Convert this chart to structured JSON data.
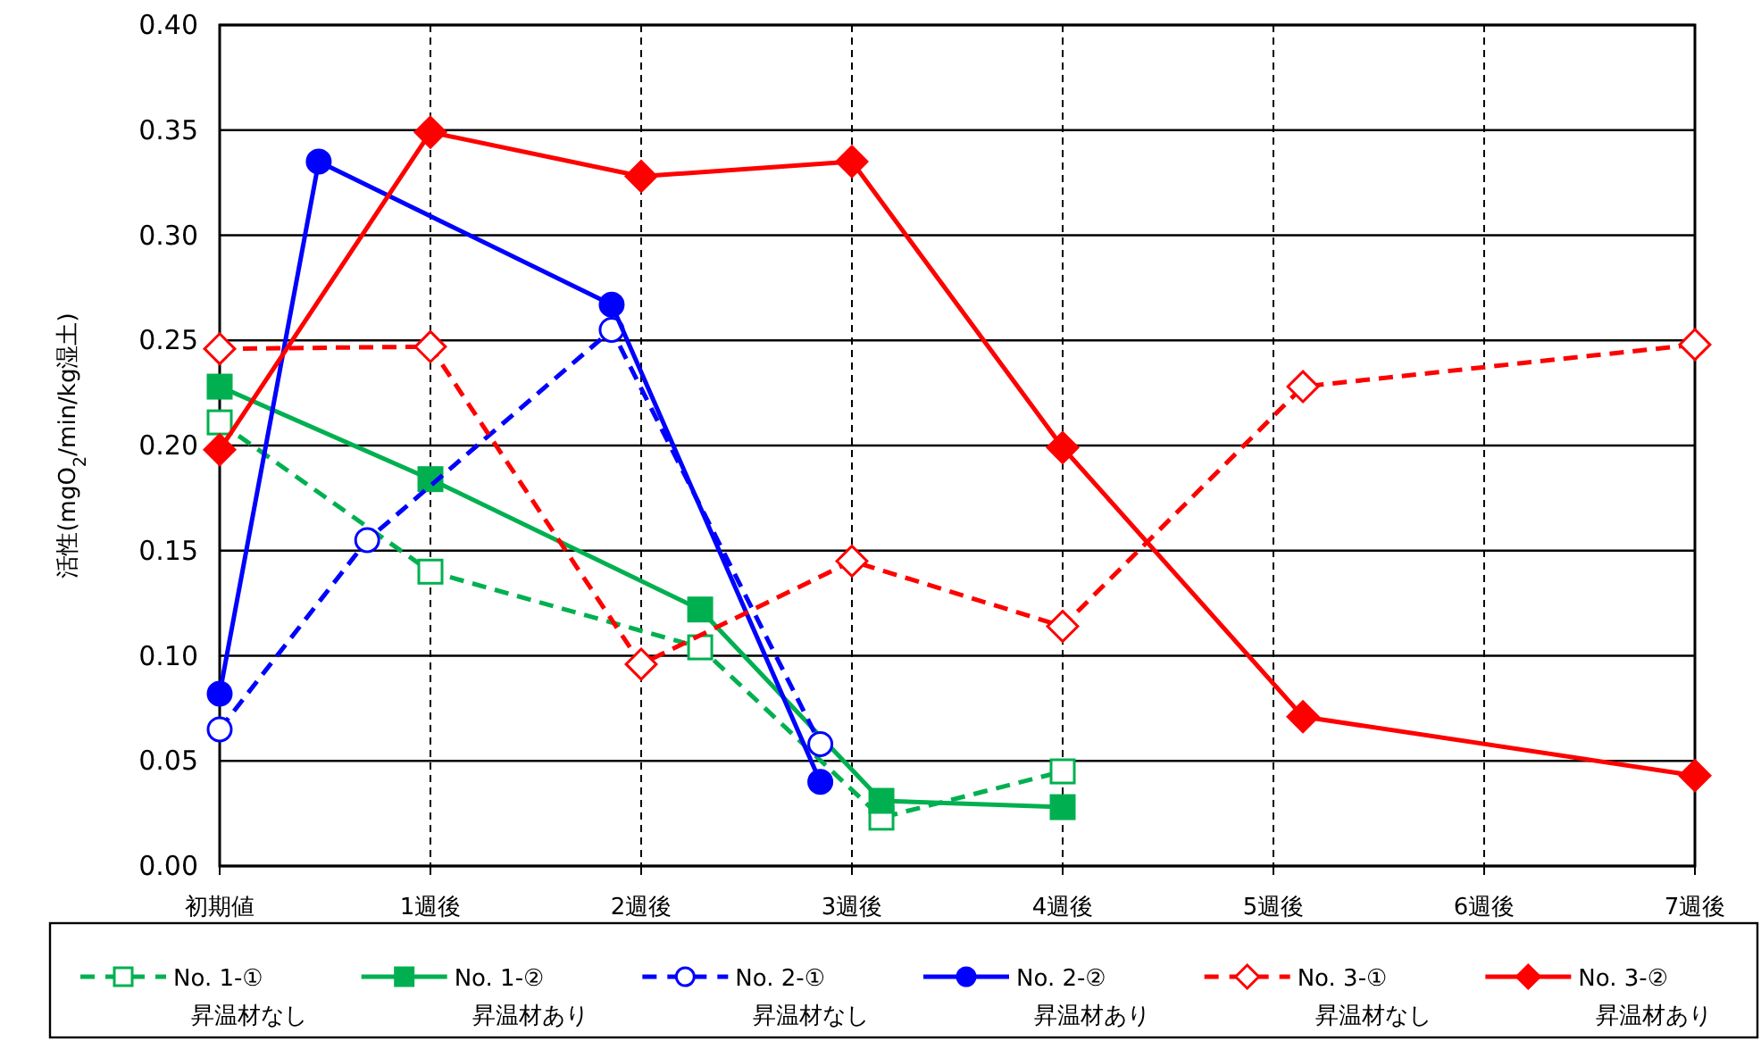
{
  "chart_data": {
    "type": "line",
    "ylabel": "活性(mgO$_{2}$/min/kg湿土)",
    "xlim": [
      0,
      7
    ],
    "ylim": [
      0,
      0.4
    ],
    "xticks": [
      {
        "value": 0,
        "label": "初期値"
      },
      {
        "value": 1,
        "label": "1週後"
      },
      {
        "value": 2,
        "label": "2週後"
      },
      {
        "value": 3,
        "label": "3週後"
      },
      {
        "value": 4,
        "label": "4週後"
      },
      {
        "value": 5,
        "label": "5週後"
      },
      {
        "value": 6,
        "label": "6週後"
      },
      {
        "value": 7,
        "label": "7週後"
      }
    ],
    "yticks": [
      {
        "value": 0,
        "label": "0.00"
      },
      {
        "value": 0.05,
        "label": "0.05"
      },
      {
        "value": 0.1,
        "label": "0.10"
      },
      {
        "value": 0.15,
        "label": "0.15"
      },
      {
        "value": 0.2,
        "label": "0.20"
      },
      {
        "value": 0.25,
        "label": "0.25"
      },
      {
        "value": 0.3,
        "label": "0.30"
      },
      {
        "value": 0.35,
        "label": "0.35"
      },
      {
        "value": 0.4,
        "label": "0.40"
      }
    ],
    "grid": true,
    "legend": "bottom",
    "series": [
      {
        "name": "No. 1-①\n昇温材なし",
        "color": "#00b050",
        "marker": "square",
        "line_style": "dashed",
        "x": [
          0,
          1,
          2.28,
          3.14,
          4.0
        ],
        "values": [
          0.211,
          0.14,
          0.104,
          0.023,
          0.045
        ]
      },
      {
        "name": "No. 1-②\n昇温材あり",
        "color": "#00b050",
        "marker": "square",
        "line_style": "solid",
        "x": [
          0,
          1,
          2.28,
          3.14,
          4.0
        ],
        "values": [
          0.228,
          0.184,
          0.122,
          0.031,
          0.028
        ]
      },
      {
        "name": "No. 2-①\n昇温材なし",
        "color": "#0000ff",
        "marker": "circle",
        "line_style": "dashed",
        "x": [
          0,
          0.7,
          1.86,
          2.85
        ],
        "values": [
          0.065,
          0.155,
          0.255,
          0.058
        ]
      },
      {
        "name": "No. 2-②\n昇温材あり",
        "color": "#0000ff",
        "marker": "circle",
        "line_style": "solid",
        "x": [
          0,
          0.47,
          1.86,
          2.85
        ],
        "values": [
          0.082,
          0.335,
          0.267,
          0.04
        ]
      },
      {
        "name": "No. 3-①\n昇温材なし",
        "color": "#ff0000",
        "marker": "diamond",
        "line_style": "dashed",
        "x": [
          0,
          1,
          2,
          3,
          4,
          5.14,
          7
        ],
        "values": [
          0.246,
          0.247,
          0.096,
          0.145,
          0.114,
          0.228,
          0.248
        ]
      },
      {
        "name": "No. 3-②\n昇温材あり",
        "color": "#ff0000",
        "marker": "diamond",
        "line_style": "solid",
        "x": [
          0,
          1,
          2,
          3,
          4,
          5.14,
          7
        ],
        "values": [
          0.198,
          0.349,
          0.328,
          0.335,
          0.199,
          0.071,
          0.043
        ]
      }
    ]
  }
}
